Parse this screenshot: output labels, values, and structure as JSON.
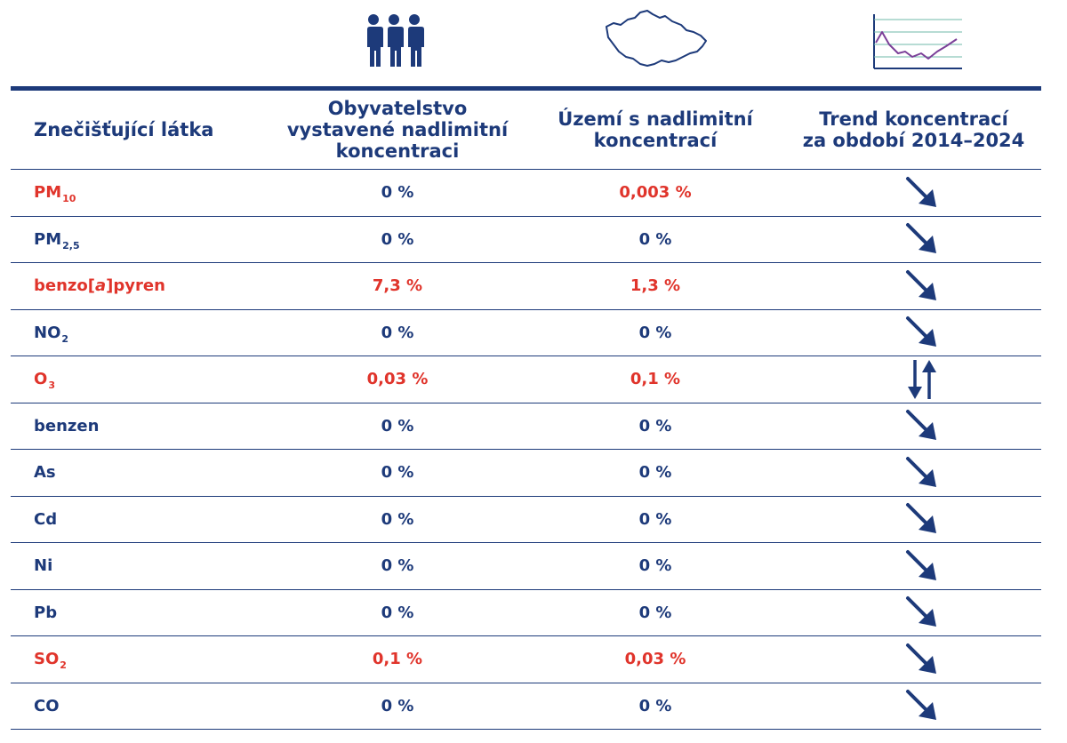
{
  "colors": {
    "primary": "#1d3a7a",
    "exceeded": "#e0342b"
  },
  "icons": {
    "population": "three-people-icon",
    "territory": "czech-republic-map-icon",
    "trend": "trend-line-chart-icon"
  },
  "headers": {
    "pollutant": "Znečišťující látka",
    "population_line1": "Obyvatelstvo",
    "population_line2": "vystavené nadlimitní",
    "population_line3": "koncentraci",
    "area_line1": "Území s nadlimitní",
    "area_line2": "koncentrací",
    "trend_line1": "Trend koncentrací",
    "trend_line2": "za období 2014–2024"
  },
  "rows": [
    {
      "name": "PM",
      "sub": "10",
      "population": "0 %",
      "area": "0,003 %",
      "trend": "decreasing",
      "name_color": "red",
      "population_color": "blue",
      "area_color": "red"
    },
    {
      "name": "PM",
      "sub": "2,5",
      "population": "0 %",
      "area": "0 %",
      "trend": "decreasing",
      "name_color": "blue",
      "population_color": "blue",
      "area_color": "blue"
    },
    {
      "name_pre": "benzo[",
      "name_italic": "a",
      "name_post": "]pyren",
      "population": "7,3 %",
      "area": "1,3 %",
      "trend": "decreasing",
      "name_color": "red",
      "population_color": "red",
      "area_color": "red"
    },
    {
      "name": "NO",
      "sub": "2",
      "population": "0 %",
      "area": "0 %",
      "trend": "decreasing",
      "name_color": "blue",
      "population_color": "blue",
      "area_color": "blue"
    },
    {
      "name": "O",
      "sub": "3",
      "population": "0,03 %",
      "area": "0,1 %",
      "trend": "mixed",
      "name_color": "red",
      "population_color": "red",
      "area_color": "red"
    },
    {
      "name": "benzen",
      "population": "0 %",
      "area": "0 %",
      "trend": "decreasing",
      "name_color": "blue",
      "population_color": "blue",
      "area_color": "blue"
    },
    {
      "name": "As",
      "population": "0 %",
      "area": "0 %",
      "trend": "decreasing",
      "name_color": "blue",
      "population_color": "blue",
      "area_color": "blue"
    },
    {
      "name": "Cd",
      "population": "0 %",
      "area": "0 %",
      "trend": "decreasing",
      "name_color": "blue",
      "population_color": "blue",
      "area_color": "blue"
    },
    {
      "name": "Ni",
      "population": "0 %",
      "area": "0 %",
      "trend": "decreasing",
      "name_color": "blue",
      "population_color": "blue",
      "area_color": "blue"
    },
    {
      "name": "Pb",
      "population": "0 %",
      "area": "0 %",
      "trend": "decreasing",
      "name_color": "blue",
      "population_color": "blue",
      "area_color": "blue"
    },
    {
      "name": "SO",
      "sub": "2",
      "population": "0,1 %",
      "area": "0,03 %",
      "trend": "decreasing",
      "name_color": "red",
      "population_color": "red",
      "area_color": "red"
    },
    {
      "name": "CO",
      "population": "0 %",
      "area": "0 %",
      "trend": "decreasing",
      "name_color": "blue",
      "population_color": "blue",
      "area_color": "blue"
    }
  ]
}
